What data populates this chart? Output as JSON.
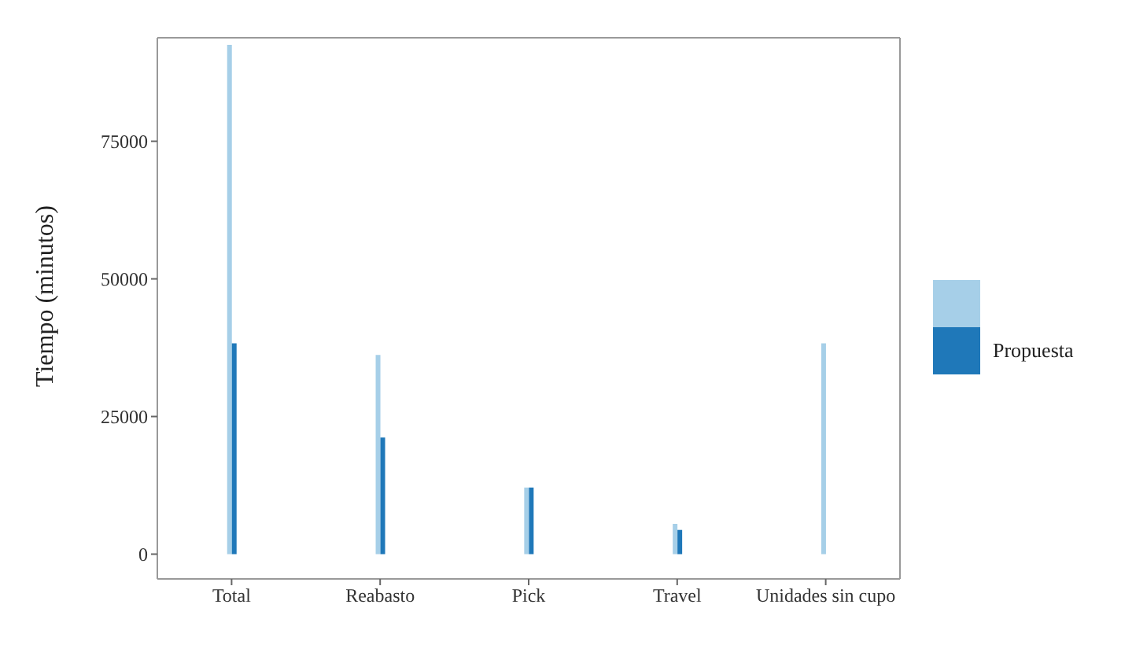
{
  "chart_data": {
    "type": "bar",
    "ylabel": "Tiempo (minutos)",
    "categories": [
      "Total",
      "Reabasto",
      "Pick",
      "Travel",
      "Unidades sin cupo"
    ],
    "series": [
      {
        "color": "#a6cfe8",
        "values": [
          92500,
          36200,
          12100,
          5500,
          38300
        ]
      },
      {
        "name": "Propuesta",
        "color": "#1f78b9",
        "values": [
          38300,
          21200,
          12100,
          4400,
          null
        ]
      }
    ],
    "ylim": [
      -4500,
      93800
    ],
    "yticks": [
      0,
      25000,
      50000,
      75000
    ],
    "grid": false,
    "legend": "right"
  }
}
